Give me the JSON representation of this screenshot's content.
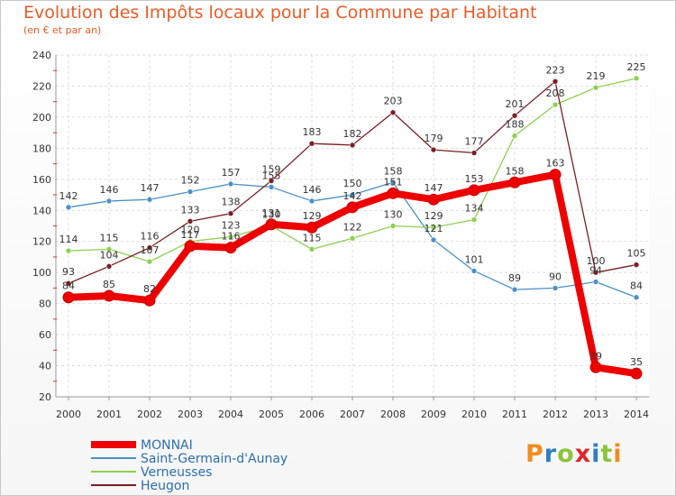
{
  "header": {
    "title": "Evolution des Impôts locaux pour la Commune par Habitant",
    "subtitle": "(en € et par an)"
  },
  "logo": {
    "text": "Proxiti",
    "colors": [
      "#f08c1e",
      "#2b7fc2",
      "#8cc43c",
      "#e2262b",
      "#2b7fc2",
      "#8cc43c",
      "#f08c1e"
    ]
  },
  "chart_data": {
    "type": "line",
    "title": "Evolution des Impôts locaux pour la Commune par Habitant",
    "subtitle": "(en € et par an)",
    "xlabel": "",
    "ylabel": "",
    "categories": [
      "2000",
      "2001",
      "2002",
      "2003",
      "2004",
      "2005",
      "2006",
      "2007",
      "2008",
      "2009",
      "2010",
      "2011",
      "2012",
      "2013",
      "2014"
    ],
    "ylim": [
      20,
      240
    ],
    "yticks": [
      20,
      40,
      60,
      80,
      100,
      120,
      140,
      160,
      180,
      200,
      220,
      240
    ],
    "grid": true,
    "legend_position": "bottom-left",
    "series": [
      {
        "name": "Saint-Germain-d'Aunay",
        "color": "#4a90c8",
        "values": [
          142,
          146,
          147,
          152,
          157,
          155,
          146,
          150,
          158,
          121,
          101,
          89,
          90,
          94,
          84
        ],
        "labels": [
          "142",
          "146",
          "147",
          "152",
          "157",
          "155",
          "146",
          "150",
          "158",
          "121",
          "101",
          "89",
          "90",
          "94",
          "84"
        ]
      },
      {
        "name": "Verneusses",
        "color": "#8cd050",
        "values": [
          114,
          115,
          107,
          120,
          123,
          130,
          115,
          122,
          130,
          129,
          134,
          188,
          208,
          219,
          225
        ],
        "labels": [
          "114",
          "115",
          "107",
          "120",
          "123",
          "130",
          "115",
          "122",
          "130",
          "129",
          "134",
          "188",
          "208",
          "219",
          "225"
        ]
      },
      {
        "name": "Heugon",
        "color": "#7a1f24",
        "values": [
          93,
          104,
          116,
          133,
          138,
          159,
          183,
          182,
          203,
          179,
          177,
          201,
          223,
          100,
          105
        ],
        "labels": [
          "93",
          "104",
          "116",
          "133",
          "138",
          "159",
          "183",
          "182",
          "203",
          "179",
          "177",
          "201",
          "223",
          "100",
          "105"
        ]
      },
      {
        "name": "MONNAI",
        "color": "#ee0000",
        "values": [
          84,
          85,
          82,
          117,
          116,
          131,
          129,
          142,
          151,
          147,
          153,
          158,
          163,
          39,
          35
        ],
        "labels": [
          "84",
          "85",
          "82",
          "117",
          "116",
          "131",
          "129",
          "142",
          "151",
          "147",
          "153",
          "158",
          "163",
          "39",
          "35"
        ]
      }
    ]
  }
}
